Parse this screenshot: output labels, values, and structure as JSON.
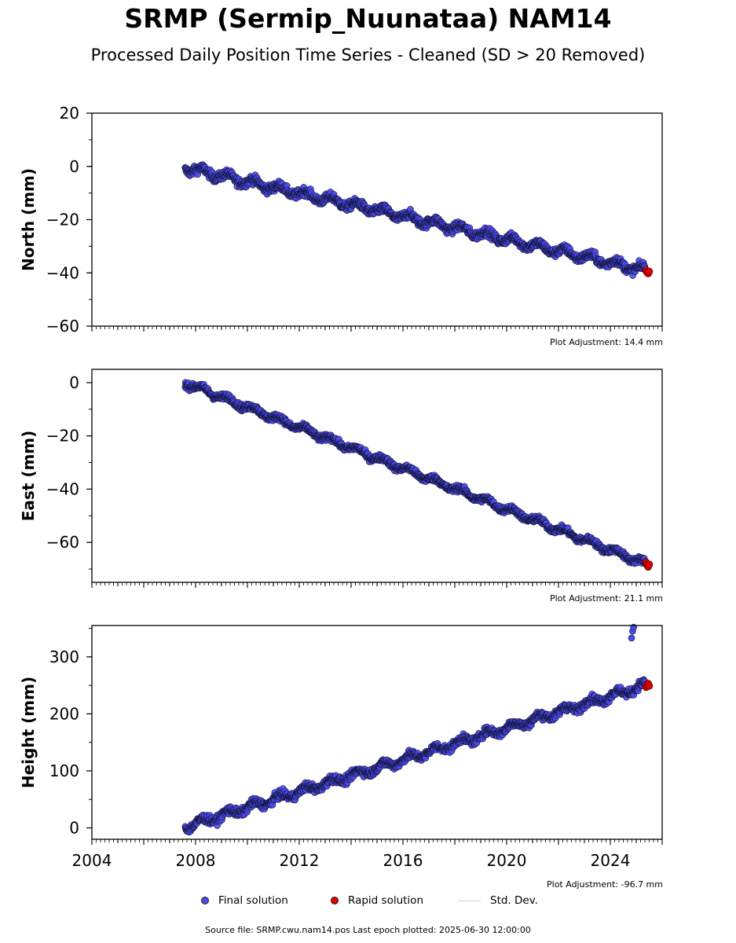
{
  "chart_data": {
    "type": "scatter",
    "title": "SRMP (Sermip_Nuunataa) NAM14",
    "subtitle": "Processed Daily Position Time Series - Cleaned (SD > 20 Removed)",
    "x_range": [
      2004.0,
      2026.0
    ],
    "x_major_ticks": [
      "2004",
      "2008",
      "2012",
      "2016",
      "2020",
      "2024"
    ],
    "grid": false,
    "legend_placement": "bottom-center",
    "colors": {
      "final": "#4a4af0",
      "rapid": "#e00000",
      "stddev": "#c8c8c8"
    },
    "panels": [
      {
        "ylabel": "North (mm)",
        "ylim": [
          -60,
          20
        ],
        "yticks": [
          20,
          0,
          -20,
          -40,
          -60
        ],
        "plot_adjustment": "Plot Adjustment: 14.4 mm",
        "final_solution": {
          "start": 2007.6,
          "end": 2025.35,
          "y_start": -0.5,
          "y_end": -39.0,
          "noise": 1.6
        },
        "rapid_solution": {
          "x": [
            2025.38,
            2025.42,
            2025.46,
            2025.5
          ],
          "y": [
            -39.0,
            -39.8,
            -40.2,
            -39.5
          ]
        }
      },
      {
        "ylabel": "East (mm)",
        "ylim": [
          -75,
          5
        ],
        "yticks": [
          0,
          -20,
          -40,
          -60
        ],
        "plot_adjustment": "Plot Adjustment: 21.1 mm",
        "final_solution": {
          "start": 2007.6,
          "end": 2025.35,
          "y_start": 0.0,
          "y_end": -68.0,
          "noise": 1.2
        },
        "rapid_solution": {
          "x": [
            2025.38,
            2025.42,
            2025.46,
            2025.5
          ],
          "y": [
            -67.5,
            -68.5,
            -69.2,
            -68.3
          ]
        }
      },
      {
        "ylabel": "Height (mm)",
        "ylim": [
          -20,
          355
        ],
        "yticks": [
          300,
          200,
          100,
          0
        ],
        "plot_adjustment": "Plot Adjustment: -96.7 mm",
        "final_solution": {
          "start": 2007.6,
          "end": 2025.35,
          "y_start": 2.0,
          "y_end": 250.0,
          "noise": 7.0,
          "outliers": {
            "x": [
              2024.82,
              2024.86,
              2024.9
            ],
            "y": [
              333,
              345,
              352
            ]
          }
        },
        "rapid_solution": {
          "x": [
            2025.38,
            2025.42,
            2025.46,
            2025.5
          ],
          "y": [
            247,
            251,
            253,
            249
          ]
        }
      }
    ],
    "legend": [
      "Final solution",
      "Rapid solution",
      "Std. Dev."
    ],
    "footer": "Source file: SRMP.cwu.nam14.pos  Last epoch plotted: 2025-06-30 12:00:00"
  }
}
